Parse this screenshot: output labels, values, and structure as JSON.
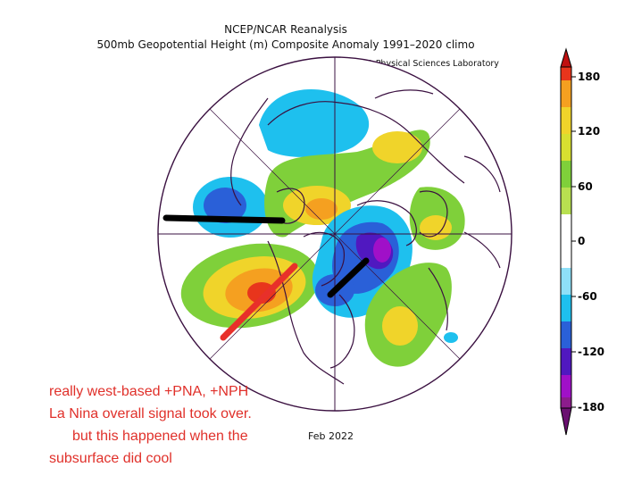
{
  "header": {
    "line1": "NCEP/NCAR Reanalysis",
    "line2": "500mb Geopotential Height (m) Composite Anomaly 1991–2020 climo",
    "credit": "NOAA Physical Sciences Laboratory"
  },
  "map": {
    "projection": "north-polar-stereographic",
    "date_label": "Feb 2022",
    "colors": {
      "strong_positive": "#e8351c",
      "positive": "#f5a020",
      "weak_positive": "#f0d42a",
      "slight_positive": "#7fd03a",
      "neutral": "#ffffff",
      "slight_negative": "#1ec0ee",
      "negative": "#2a60d8",
      "strong_negative": "#5018c0",
      "very_strong_negative": "#a010c8",
      "coastline": "#3a1040"
    },
    "annotation_line_colors": [
      "#000000",
      "#e8302a"
    ]
  },
  "colorbar": {
    "ticks": [
      "180",
      "120",
      "60",
      "0",
      "-60",
      "-120",
      "-180"
    ],
    "colors": [
      "#8c1c8c",
      "#a010c8",
      "#5018c0",
      "#2a60d8",
      "#1ec0ee",
      "#8ee0f8",
      "#ffffff",
      "#ffffff",
      "#b8e050",
      "#7fd03a",
      "#f0d42a",
      "#f5a020",
      "#e8351c",
      "#c01010"
    ]
  },
  "annotation": {
    "line1": "really west-based +PNA, +NPH",
    "line2": "La Nina overall signal took over.",
    "line3": "but this happened when the",
    "line4": "subsurface did cool"
  }
}
